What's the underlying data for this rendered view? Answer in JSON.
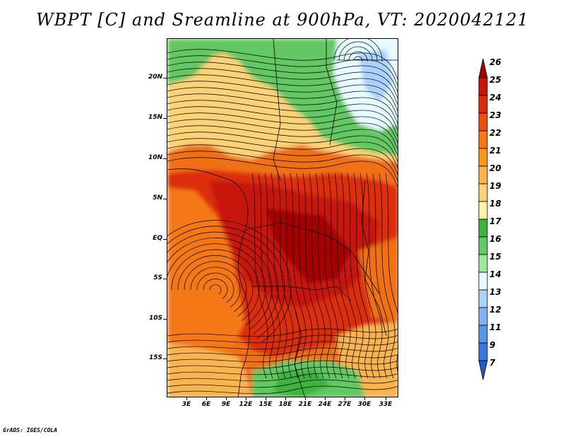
{
  "title": "WBPT [C] and Sreamline at 900hPa, VT: 2020042121",
  "credit": "GrADS: IGES/COLA",
  "map": {
    "lat_labels": [
      "20N",
      "15N",
      "10N",
      "5N",
      "EQ",
      "5S",
      "10S",
      "15S"
    ],
    "lon_labels": [
      "3E",
      "6E",
      "9E",
      "12E",
      "15E",
      "18E",
      "21E",
      "24E",
      "27E",
      "30E",
      "33E"
    ]
  },
  "colorbar": {
    "labels": [
      "26",
      "25",
      "24",
      "23",
      "22",
      "21",
      "20",
      "19",
      "18",
      "17",
      "16",
      "15",
      "14",
      "13",
      "12",
      "11",
      "9",
      "7"
    ],
    "colors": [
      "#a50000",
      "#c8140a",
      "#dc2d0a",
      "#ec500f",
      "#f57814",
      "#fa9619",
      "#fab450",
      "#fad278",
      "#fff0aa",
      "#3cb43c",
      "#64c864",
      "#a0e6a0",
      "#e6faff",
      "#aad2fa",
      "#82b4f0",
      "#5a96e6",
      "#3c78dc",
      "#1e5ac8"
    ]
  }
}
